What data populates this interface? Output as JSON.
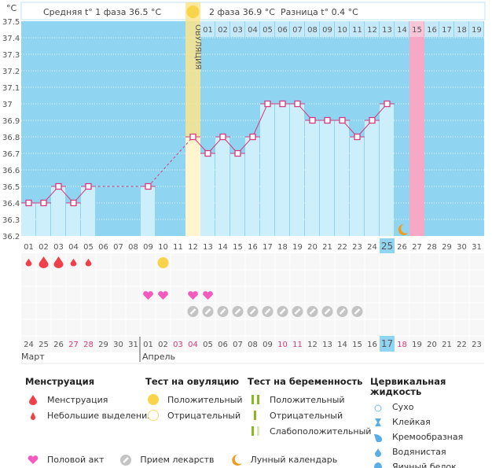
{
  "header": {
    "phase1": "Средняя t° 1 фаза 36.5 °C",
    "phase2": "2 фаза 36.9 °C",
    "diff": "Разница t° 0.4 °C",
    "ovulation": "ОВУЛЯЦИЯ",
    "unit": "°C"
  },
  "chart_data": {
    "type": "line",
    "ylim": [
      36.2,
      37.5
    ],
    "yticks": [
      "36.2",
      "36.3",
      "36.4",
      "36.5",
      "36.6",
      "36.7",
      "36.8",
      "36.9",
      "37",
      "37.1",
      "37.2",
      "37.3",
      "37.4",
      "37.5"
    ],
    "cycle_days": [
      "01",
      "02",
      "03",
      "04",
      "05",
      "06",
      "07",
      "08",
      "09",
      "10",
      "11",
      "12",
      "13",
      "14",
      "15",
      "16",
      "17",
      "18",
      "19",
      "20",
      "21",
      "22",
      "23",
      "24",
      "25",
      "26",
      "27",
      "28",
      "29",
      "30",
      "31"
    ],
    "temperatures": [
      36.4,
      36.4,
      36.5,
      36.4,
      36.5,
      null,
      null,
      null,
      36.5,
      null,
      null,
      36.8,
      36.7,
      36.8,
      36.7,
      36.8,
      37.0,
      37.0,
      37.0,
      36.9,
      36.9,
      36.9,
      36.8,
      36.9,
      37.0,
      null,
      null,
      null,
      null,
      null,
      null
    ],
    "ovulation_day": 12,
    "expected_period_day": 27,
    "today_day": 25,
    "dpo_labels": [
      "01",
      "02",
      "03",
      "04",
      "05",
      "06",
      "07",
      "08",
      "09",
      "10",
      "11",
      "12",
      "13",
      "14",
      "15",
      "16",
      "17",
      "18",
      "19"
    ],
    "dpo_highlight": "15",
    "calendar_dates": [
      "24",
      "25",
      "26",
      "27",
      "28",
      "29",
      "30",
      "31",
      "01",
      "02",
      "03",
      "04",
      "05",
      "06",
      "07",
      "08",
      "09",
      "10",
      "11",
      "12",
      "13",
      "14",
      "15",
      "16",
      "17",
      "18",
      "19",
      "20",
      "21",
      "22",
      "23"
    ],
    "red_dates_index": [
      3,
      4,
      10,
      11,
      17,
      18,
      25
    ],
    "months": [
      "Март",
      "Апрель"
    ],
    "menstruation": {
      "1": "small",
      "2": "large",
      "3": "large",
      "4": "small",
      "5": "small"
    },
    "ovulation_test_positive_days": [
      10
    ],
    "intercourse_days": [
      9,
      10,
      12,
      13
    ],
    "medication_days": [
      12,
      13,
      14,
      15,
      16,
      17,
      18,
      19,
      20,
      21,
      22,
      23
    ],
    "moon_days": [
      26
    ]
  },
  "colors": {
    "bg": "#8fd5f1",
    "bar": "#cdeefb",
    "line": "#d63a7d",
    "ovulation": "#fbe58c",
    "period": "#f7a8c4",
    "blood": "#f0404a",
    "heart": "#f45bbf",
    "pill": "#c4c4c4",
    "moon": "#f39a1b",
    "green": "#8ab820"
  },
  "legend": {
    "menstruation": {
      "title": "Менструация",
      "items": [
        "Менструация",
        "Небольшие выделения"
      ]
    },
    "ovtest": {
      "title": "Тест на овуляцию",
      "items": [
        "Положительный",
        "Отрицательный"
      ]
    },
    "pregtest": {
      "title": "Тест на беременность",
      "items": [
        "Положительный",
        "Отрицательный",
        "Слабоположительный"
      ]
    },
    "cervical": {
      "title": "Цервикальная жидкость",
      "items": [
        "Сухо",
        "Клейкая",
        "Кремообразная",
        "Водянистая",
        "Яичный белок"
      ]
    },
    "other": [
      "Половой акт",
      "Прием лекарств",
      "Лунный календарь"
    ]
  }
}
